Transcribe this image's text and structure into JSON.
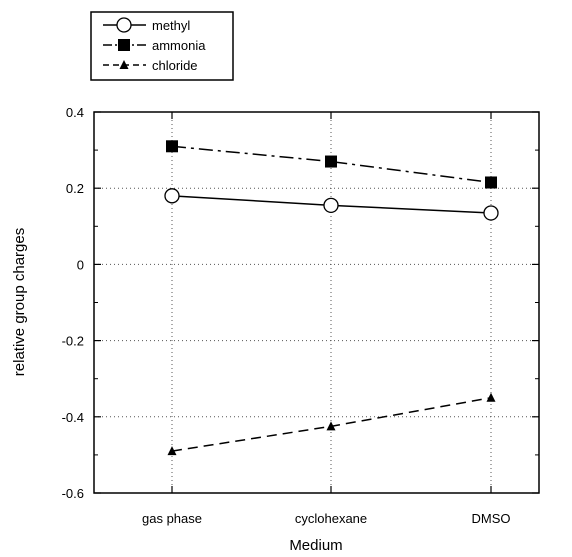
{
  "chart_data": {
    "type": "line",
    "categories": [
      "gas phase",
      "cyclohexane",
      "DMSO"
    ],
    "xlabel": "Medium",
    "ylabel": "relative group charges",
    "ylim": [
      -0.6,
      0.4
    ],
    "yticks": [
      0.4,
      0.2,
      0,
      -0.2,
      -0.4,
      -0.6
    ],
    "ytick_labels": [
      "0.4",
      "0.2",
      "0",
      "-0.2",
      "-0.4",
      "-0.6"
    ],
    "grid": true,
    "legend_position": "top-left, outside plot",
    "series": [
      {
        "name": "methyl",
        "values": [
          0.18,
          0.155,
          0.135
        ],
        "marker": "open-circle",
        "line": "solid",
        "color": "#000000"
      },
      {
        "name": "ammonia",
        "values": [
          0.31,
          0.27,
          0.215
        ],
        "marker": "filled-square",
        "line": "dash-dot",
        "color": "#000000"
      },
      {
        "name": "chloride",
        "values": [
          -0.49,
          -0.425,
          -0.35
        ],
        "marker": "filled-triangle",
        "line": "dashed",
        "color": "#000000"
      }
    ]
  }
}
